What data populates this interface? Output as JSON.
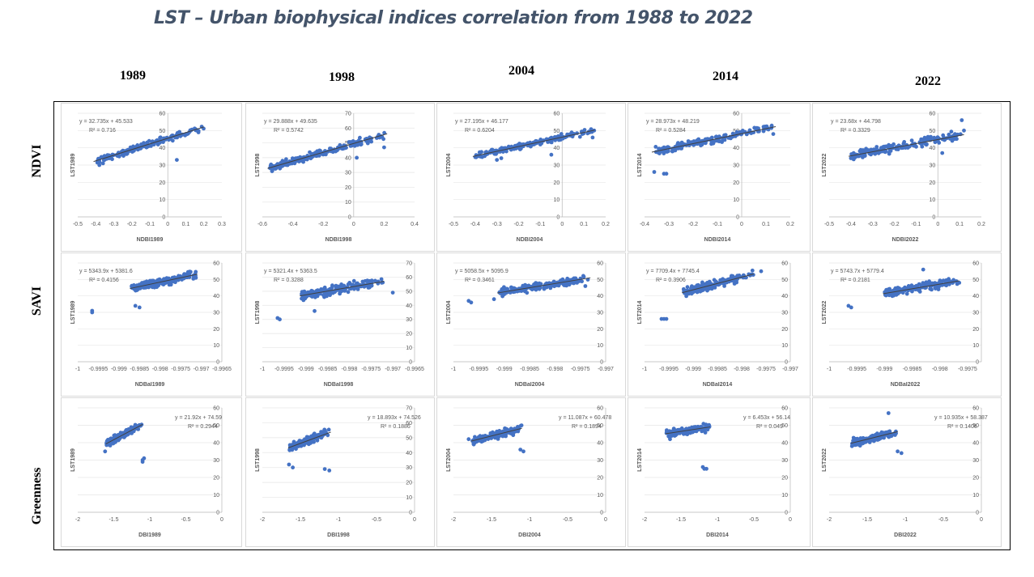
{
  "title": "LST – Urban biophysical indices correlation from 1988 to 2022",
  "years": [
    "1989",
    "1998",
    "2004",
    "2014",
    "2022"
  ],
  "row_labels": [
    "NDVI",
    "SAVI",
    "Greenness"
  ],
  "colors": {
    "point": "#4472c4",
    "trend": "#404040",
    "title": "#44546a"
  },
  "chart_data": [
    {
      "id": "ndvi-1989",
      "type": "scatter",
      "row": 0,
      "col": 0,
      "xlabel": "NDBI1989",
      "ylabel": "LST1989",
      "xlim": [
        -0.5,
        0.3
      ],
      "xticks": [
        "-0.5",
        "-0.4",
        "-0.3",
        "-0.2",
        "-0.1",
        "0",
        "0.1",
        "0.2",
        "0.3"
      ],
      "ylim": [
        0,
        60
      ],
      "yticks": [
        "0",
        "10",
        "20",
        "30",
        "40",
        "50",
        "60"
      ],
      "equation": "y = 32.735x + 45.533",
      "r2": "R² = 0.716",
      "slope": 32.735,
      "intercept": 45.533,
      "cluster": {
        "x0": -0.4,
        "x1": 0.2,
        "spread": 2.5,
        "n": 170
      },
      "outliers": [
        [
          -0.38,
          30
        ],
        [
          -0.36,
          31
        ],
        [
          0.05,
          33
        ],
        [
          0.17,
          49
        ]
      ]
    },
    {
      "id": "ndvi-1998",
      "type": "scatter",
      "row": 0,
      "col": 1,
      "xlabel": "NDBI1998",
      "ylabel": "LST1998",
      "xlim": [
        -0.6,
        0.4
      ],
      "xticks": [
        "-0.6",
        "-0.4",
        "-0.2",
        "0",
        "0.2",
        "0.4"
      ],
      "ylim": [
        0,
        70
      ],
      "yticks": [
        "0",
        "10",
        "20",
        "30",
        "40",
        "50",
        "60",
        "70"
      ],
      "equation": "y = 29.888x + 49.635",
      "r2": "R² = 0.5742",
      "slope": 29.888,
      "intercept": 49.635,
      "cluster": {
        "x0": -0.55,
        "x1": 0.22,
        "spread": 3.5,
        "n": 190
      },
      "outliers": [
        [
          -0.55,
          33
        ],
        [
          -0.53,
          34
        ],
        [
          0.02,
          40
        ],
        [
          0.2,
          47
        ]
      ]
    },
    {
      "id": "ndvi-2004",
      "type": "scatter",
      "row": 0,
      "col": 2,
      "xlabel": "NDBI2004",
      "ylabel": "LST2004",
      "xlim": [
        -0.5,
        0.2
      ],
      "xticks": [
        "-0.5",
        "-0.4",
        "-0.3",
        "-0.2",
        "-0.1",
        "0",
        "0.1",
        "0.2"
      ],
      "ylim": [
        0,
        60
      ],
      "yticks": [
        "0",
        "10",
        "20",
        "30",
        "40",
        "50",
        "60"
      ],
      "equation": "y = 27.195x + 46.177",
      "r2": "R² = 0.6204",
      "slope": 27.195,
      "intercept": 46.177,
      "cluster": {
        "x0": -0.4,
        "x1": 0.15,
        "spread": 2.5,
        "n": 170
      },
      "outliers": [
        [
          -0.3,
          33
        ],
        [
          -0.28,
          34
        ],
        [
          -0.05,
          36
        ],
        [
          0.14,
          46
        ]
      ]
    },
    {
      "id": "ndvi-2014",
      "type": "scatter",
      "row": 0,
      "col": 3,
      "xlabel": "NDBI2014",
      "ylabel": "LST2014",
      "xlim": [
        -0.4,
        0.2
      ],
      "xticks": [
        "-0.4",
        "-0.3",
        "-0.2",
        "-0.1",
        "0",
        "0.1",
        "0.2"
      ],
      "ylim": [
        0,
        60
      ],
      "yticks": [
        "0",
        "10",
        "20",
        "30",
        "40",
        "50",
        "60"
      ],
      "equation": "y = 28.973x + 48.219",
      "r2": "R² = 0.5284",
      "slope": 28.973,
      "intercept": 48.219,
      "cluster": {
        "x0": -0.36,
        "x1": 0.14,
        "spread": 3,
        "n": 170
      },
      "outliers": [
        [
          -0.36,
          26
        ],
        [
          -0.31,
          25
        ],
        [
          -0.32,
          25
        ],
        [
          0.13,
          48
        ]
      ]
    },
    {
      "id": "ndvi-2022",
      "type": "scatter",
      "row": 0,
      "col": 4,
      "xlabel": "NDBI2022",
      "ylabel": "LST2022",
      "xlim": [
        -0.5,
        0.2
      ],
      "xticks": [
        "-0.5",
        "-0.4",
        "-0.3",
        "-0.2",
        "-0.1",
        "0",
        "0.1",
        "0.2"
      ],
      "ylim": [
        0,
        60
      ],
      "yticks": [
        "0",
        "10",
        "20",
        "30",
        "40",
        "50",
        "60"
      ],
      "equation": "y = 23.68x + 44.798",
      "r2": "R² = 0.3329",
      "slope": 23.68,
      "intercept": 44.798,
      "cluster": {
        "x0": -0.4,
        "x1": 0.12,
        "spread": 3.5,
        "n": 170
      },
      "outliers": [
        [
          0.11,
          56
        ],
        [
          -0.4,
          34
        ],
        [
          0.02,
          37
        ],
        [
          0.12,
          50
        ]
      ]
    },
    {
      "id": "savi-1989",
      "type": "scatter",
      "row": 1,
      "col": 0,
      "xlabel": "NDBaI1989",
      "ylabel": "LST1989",
      "xlim": [
        -1,
        -0.9965
      ],
      "xticks": [
        "-1",
        "-0.9995",
        "-0.999",
        "-0.9985",
        "-0.998",
        "-0.9975",
        "-0.997",
        "-0.9965"
      ],
      "ylim": [
        0,
        60
      ],
      "yticks": [
        "0",
        "10",
        "20",
        "30",
        "40",
        "50",
        "60"
      ],
      "equation": "y = 5343.9x + 5381.6",
      "r2": "R² = 0.4156",
      "slope": 5343.9,
      "intercept": 5381.6,
      "cluster": {
        "x0": -0.9987,
        "x1": -0.9971,
        "spread": 3.5,
        "n": 180
      },
      "outliers": [
        [
          -0.99965,
          31
        ],
        [
          -0.99965,
          30
        ],
        [
          -0.9986,
          34
        ],
        [
          -0.9985,
          33
        ]
      ]
    },
    {
      "id": "savi-1998",
      "type": "scatter",
      "row": 1,
      "col": 1,
      "xlabel": "NDBaI1998",
      "ylabel": "LST1998",
      "xlim": [
        -1,
        -0.9965
      ],
      "xticks": [
        "-1",
        "-0.9995",
        "-0.999",
        "-0.9985",
        "-0.998",
        "-0.9975",
        "-0.997",
        "-0.9965"
      ],
      "ylim": [
        0,
        70
      ],
      "yticks": [
        "0",
        "10",
        "20",
        "30",
        "40",
        "50",
        "60",
        "70"
      ],
      "equation": "y = 5321.4x + 5363.5",
      "r2": "R² = 0.3288",
      "slope": 5321.4,
      "intercept": 5363.5,
      "cluster": {
        "x0": -0.9991,
        "x1": -0.9972,
        "spread": 4.5,
        "n": 190
      },
      "outliers": [
        [
          -0.99965,
          31
        ],
        [
          -0.9996,
          30
        ],
        [
          -0.9988,
          36
        ],
        [
          -0.997,
          49
        ]
      ]
    },
    {
      "id": "savi-2004",
      "type": "scatter",
      "row": 1,
      "col": 2,
      "xlabel": "NDBaI2004",
      "ylabel": "LST2004",
      "xlim": [
        -1,
        -0.997
      ],
      "xticks": [
        "-1",
        "-0.9995",
        "-0.999",
        "-0.9985",
        "-0.998",
        "-0.9975",
        "-0.997"
      ],
      "ylim": [
        0,
        60
      ],
      "yticks": [
        "0",
        "10",
        "20",
        "30",
        "40",
        "50",
        "60"
      ],
      "equation": "y = 5058.5x + 5095.9",
      "r2": "R² = 0.3461",
      "slope": 5058.5,
      "intercept": 5095.9,
      "cluster": {
        "x0": -0.9991,
        "x1": -0.9973,
        "spread": 3.5,
        "n": 180
      },
      "outliers": [
        [
          -0.9997,
          37
        ],
        [
          -0.99965,
          36
        ],
        [
          -0.9992,
          38
        ],
        [
          -0.9974,
          46
        ]
      ]
    },
    {
      "id": "savi-2014",
      "type": "scatter",
      "row": 1,
      "col": 3,
      "xlabel": "NDBaI2014",
      "ylabel": "LST2014",
      "xlim": [
        -1,
        -0.997
      ],
      "xticks": [
        "-1",
        "-0.9995",
        "-0.999",
        "-0.9985",
        "-0.998",
        "-0.9975",
        "-0.997"
      ],
      "ylim": [
        0,
        60
      ],
      "yticks": [
        "0",
        "10",
        "20",
        "30",
        "40",
        "50",
        "60"
      ],
      "equation": "y = 7709.4x + 7745.4",
      "r2": "R² = 0.3906",
      "slope": 7709.4,
      "intercept": 7745.4,
      "cluster": {
        "x0": -0.9992,
        "x1": -0.99775,
        "spread": 3.5,
        "n": 180
      },
      "outliers": [
        [
          -0.99965,
          26
        ],
        [
          -0.9996,
          26
        ],
        [
          -0.99955,
          26
        ],
        [
          -0.9976,
          55
        ]
      ]
    },
    {
      "id": "savi-2022",
      "type": "scatter",
      "row": 1,
      "col": 4,
      "xlabel": "NDBaI2022",
      "ylabel": "LST2022",
      "xlim": [
        -1,
        -0.99725
      ],
      "xticks": [
        "-1",
        "-0.9995",
        "-0.999",
        "-0.9985",
        "-0.998",
        "-0.9975"
      ],
      "ylim": [
        0,
        60
      ],
      "yticks": [
        "0",
        "10",
        "20",
        "30",
        "40",
        "50",
        "60"
      ],
      "equation": "y = 5743.7x + 5779.4",
      "r2": "R² = 0.2181",
      "slope": 5743.7,
      "intercept": 5779.4,
      "cluster": {
        "x0": -0.999,
        "x1": -0.99765,
        "spread": 3.5,
        "n": 180
      },
      "outliers": [
        [
          -0.99965,
          34
        ],
        [
          -0.9996,
          33
        ],
        [
          -0.9983,
          56
        ],
        [
          -0.99765,
          48
        ]
      ]
    },
    {
      "id": "green-1989",
      "type": "scatter",
      "row": 2,
      "col": 0,
      "xlabel": "DBI1989",
      "ylabel": "LST1989",
      "xlim": [
        -2,
        0
      ],
      "xticks": [
        "-2",
        "-1.5",
        "-1",
        "-0.5",
        "0"
      ],
      "ylim": [
        0,
        60
      ],
      "yticks": [
        "0",
        "10",
        "20",
        "30",
        "40",
        "50",
        "60"
      ],
      "equation": "y = 21.92x + 74.59",
      "r2": "R² = 0.2944",
      "slope": 21.92,
      "intercept": 74.59,
      "cluster": {
        "x0": -1.6,
        "x1": -1.1,
        "spread": 3,
        "n": 150
      },
      "outliers": [
        [
          -1.62,
          35
        ],
        [
          -1.1,
          30
        ],
        [
          -1.08,
          31
        ],
        [
          -1.1,
          29
        ]
      ]
    },
    {
      "id": "green-1998",
      "type": "scatter",
      "row": 2,
      "col": 1,
      "xlabel": "DBI1998",
      "ylabel": "LST1998",
      "xlim": [
        -2,
        0
      ],
      "xticks": [
        "-2",
        "-1.5",
        "-1",
        "-0.5",
        "0"
      ],
      "ylim": [
        0,
        70
      ],
      "yticks": [
        "0",
        "10",
        "20",
        "30",
        "40",
        "50",
        "60",
        "70"
      ],
      "equation": "y = 18.893x + 74.526",
      "r2": "R² = 0.1886",
      "slope": 18.893,
      "intercept": 74.526,
      "cluster": {
        "x0": -1.65,
        "x1": -1.1,
        "spread": 4,
        "n": 160
      },
      "outliers": [
        [
          -1.65,
          32
        ],
        [
          -1.6,
          30
        ],
        [
          -1.18,
          29
        ],
        [
          -1.12,
          28
        ]
      ]
    },
    {
      "id": "green-2004",
      "type": "scatter",
      "row": 2,
      "col": 2,
      "xlabel": "DBI2004",
      "ylabel": "LST2004",
      "xlim": [
        -2,
        0
      ],
      "xticks": [
        "-2",
        "-1.5",
        "-1",
        "-0.5",
        "0"
      ],
      "ylim": [
        0,
        60
      ],
      "yticks": [
        "0",
        "10",
        "20",
        "30",
        "40",
        "50",
        "60"
      ],
      "equation": "y = 11.087x + 60.478",
      "r2": "R² = 0.1894",
      "slope": 11.087,
      "intercept": 60.478,
      "cluster": {
        "x0": -1.75,
        "x1": -1.1,
        "spread": 3,
        "n": 150
      },
      "outliers": [
        [
          -1.8,
          42
        ],
        [
          -1.75,
          41
        ],
        [
          -1.12,
          36
        ],
        [
          -1.08,
          35
        ]
      ]
    },
    {
      "id": "green-2014",
      "type": "scatter",
      "row": 2,
      "col": 3,
      "xlabel": "DBI2014",
      "ylabel": "LST2014",
      "xlim": [
        -2,
        0
      ],
      "xticks": [
        "-2",
        "-1.5",
        "-1",
        "-0.5",
        "0"
      ],
      "ylim": [
        0,
        60
      ],
      "yticks": [
        "0",
        "10",
        "20",
        "30",
        "40",
        "50",
        "60"
      ],
      "equation": "y = 6.453x + 56.14",
      "r2": "R² = 0.049",
      "slope": 6.453,
      "intercept": 56.14,
      "cluster": {
        "x0": -1.7,
        "x1": -1.1,
        "spread": 3,
        "n": 150
      },
      "outliers": [
        [
          -1.2,
          26
        ],
        [
          -1.15,
          25
        ],
        [
          -1.18,
          25
        ],
        [
          -1.65,
          42
        ]
      ]
    },
    {
      "id": "green-2022",
      "type": "scatter",
      "row": 2,
      "col": 4,
      "xlabel": "DBI2022",
      "ylabel": "LST2022",
      "xlim": [
        -2,
        0
      ],
      "xticks": [
        "-2",
        "-1.5",
        "-1",
        "-0.5",
        "0"
      ],
      "ylim": [
        0,
        60
      ],
      "yticks": [
        "0",
        "10",
        "20",
        "30",
        "40",
        "50",
        "60"
      ],
      "equation": "y = 10.935x + 58.387",
      "r2": "R² = 0.1406",
      "slope": 10.935,
      "intercept": 58.387,
      "cluster": {
        "x0": -1.7,
        "x1": -1.1,
        "spread": 3,
        "n": 150
      },
      "outliers": [
        [
          -1.22,
          57
        ],
        [
          -1.05,
          34
        ],
        [
          -1.1,
          35
        ],
        [
          -1.7,
          38
        ]
      ]
    }
  ]
}
